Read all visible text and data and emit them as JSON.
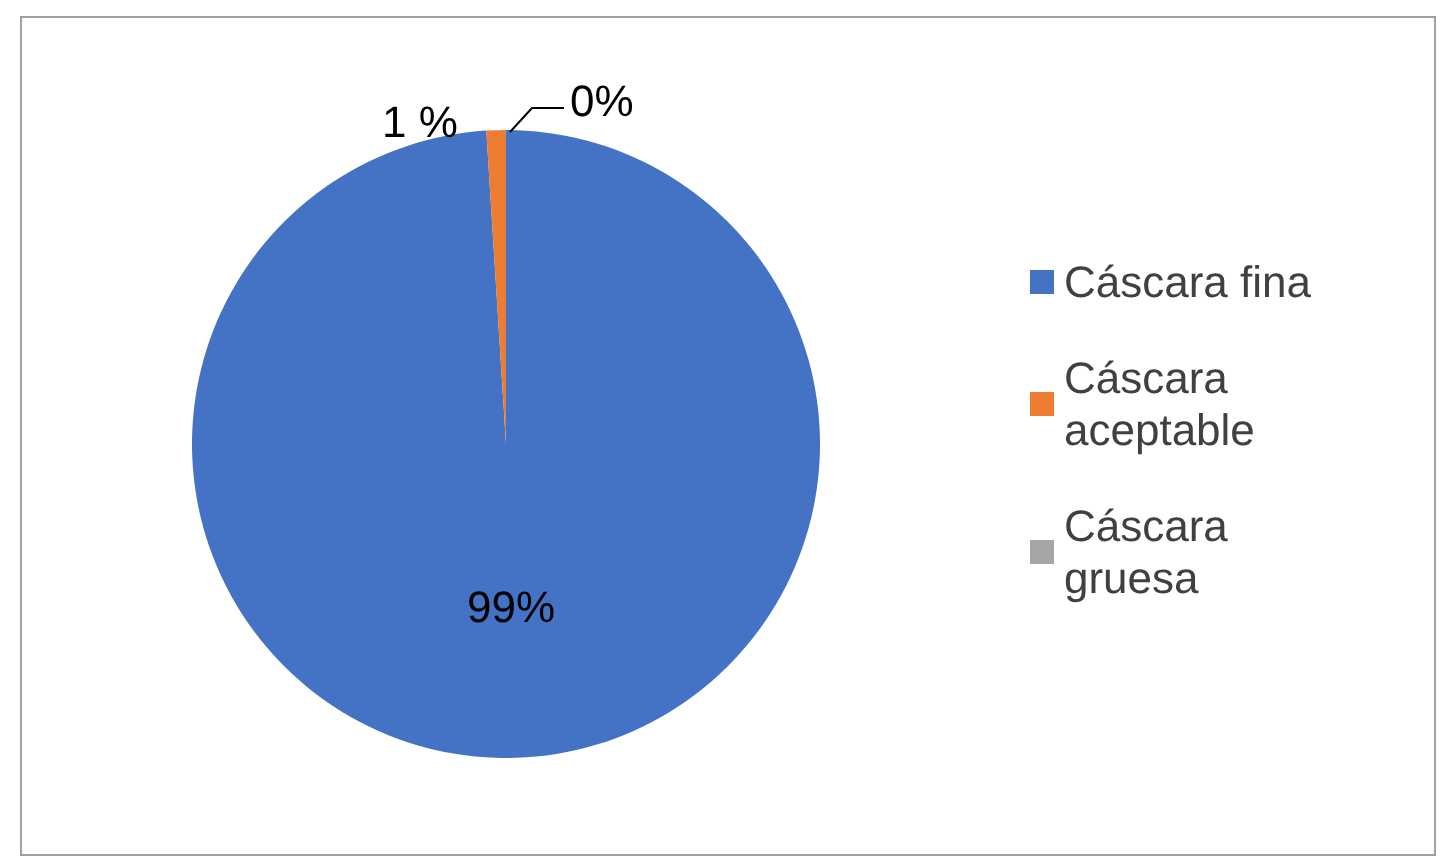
{
  "chart_data": {
    "type": "pie",
    "categories": [
      "Cáscara fina",
      "Cáscara aceptable",
      "Cáscara gruesa"
    ],
    "values": [
      99,
      1,
      0
    ],
    "colors": [
      "#4472c4",
      "#ed7d31",
      "#a5a5a5"
    ],
    "value_labels": [
      "99%",
      "1 %",
      "0%"
    ],
    "legend": "right"
  }
}
